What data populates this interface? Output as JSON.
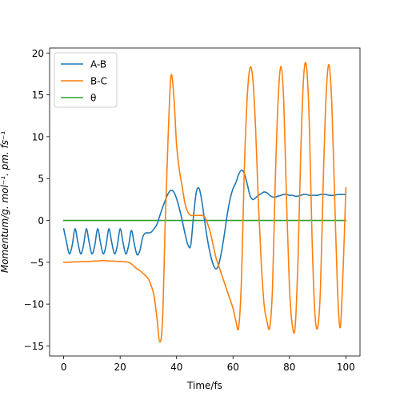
{
  "chart_data": {
    "type": "line",
    "title": "",
    "xlabel": "Time/fs",
    "ylabel": "Momentum/g. mol⁻¹. pm. fs⁻¹",
    "xlim": [
      -5,
      105
    ],
    "ylim": [
      -16.2,
      20.6
    ],
    "xticks": [
      0,
      20,
      40,
      60,
      80,
      100
    ],
    "yticks": [
      -15,
      -10,
      -5,
      0,
      5,
      10,
      15,
      20
    ],
    "grid": false,
    "legend_position": "top-left",
    "series": [
      {
        "name": "A-B",
        "color": "#1f77b4",
        "x": [
          0,
          1,
          2,
          3,
          4,
          5,
          6,
          7,
          8,
          9,
          10,
          11,
          12,
          13,
          14,
          15,
          16,
          17,
          18,
          19,
          20,
          21,
          22,
          23,
          24,
          25,
          26,
          27,
          28,
          29,
          30,
          31,
          32,
          33,
          34,
          35,
          36,
          37,
          38,
          39,
          40,
          41,
          42,
          43,
          44,
          45,
          46,
          47,
          48,
          49,
          50,
          51,
          52,
          53,
          54,
          55,
          56,
          57,
          58,
          59,
          60,
          61,
          62,
          63,
          64,
          65,
          66,
          67,
          68,
          69,
          70,
          71,
          72,
          73,
          74,
          75,
          76,
          77,
          78,
          79,
          80,
          81,
          82,
          83,
          84,
          85,
          86,
          87,
          88,
          89,
          90,
          91,
          92,
          93,
          94,
          95,
          96,
          97,
          98,
          99,
          100
        ],
        "y": [
          -1.0,
          -2.6,
          -4.0,
          -3.0,
          -1.0,
          -2.6,
          -4.0,
          -3.0,
          -1.0,
          -2.6,
          -4.0,
          -3.0,
          -1.0,
          -2.6,
          -4.0,
          -3.0,
          -1.0,
          -2.6,
          -4.0,
          -3.0,
          -1.0,
          -2.6,
          -4.0,
          -3.0,
          -1.2,
          -2.8,
          -4.1,
          -3.6,
          -2.0,
          -1.5,
          -1.5,
          -1.4,
          -1.0,
          -0.5,
          0.5,
          1.5,
          2.4,
          3.2,
          3.6,
          3.4,
          2.6,
          1.4,
          0.0,
          -1.6,
          -2.9,
          -3.0,
          0.5,
          3.4,
          3.8,
          2.2,
          -0.2,
          -2.4,
          -4.1,
          -5.3,
          -5.8,
          -5.2,
          -3.6,
          -1.5,
          0.8,
          2.6,
          3.8,
          4.5,
          5.5,
          6.0,
          5.6,
          4.4,
          3.0,
          2.5,
          2.7,
          3.0,
          3.2,
          3.4,
          3.3,
          3.0,
          2.8,
          2.8,
          2.9,
          3.0,
          3.1,
          3.1,
          3.0,
          3.0,
          2.9,
          2.9,
          3.0,
          3.1,
          3.1,
          3.0,
          3.0,
          3.0,
          3.0,
          3.1,
          3.1,
          3.1,
          3.0,
          3.0,
          3.0,
          3.1,
          3.1,
          3.1,
          3.1
        ]
      },
      {
        "name": "B-C",
        "color": "#ff7f0e",
        "x": [
          0,
          1,
          2,
          3,
          4,
          5,
          6,
          7,
          8,
          9,
          10,
          11,
          12,
          13,
          14,
          15,
          16,
          17,
          18,
          19,
          20,
          21,
          22,
          23,
          24,
          25,
          26,
          27,
          28,
          29,
          30,
          31,
          32,
          33,
          34,
          35,
          36,
          37,
          38,
          39,
          40,
          41,
          42,
          43,
          44,
          45,
          46,
          47,
          48,
          49,
          50,
          51,
          52,
          53,
          54,
          55,
          56,
          57,
          58,
          59,
          60,
          61,
          62,
          63,
          64,
          65,
          66,
          67,
          68,
          69,
          70,
          71,
          72,
          73,
          74,
          75,
          76,
          77,
          78,
          79,
          80,
          81,
          82,
          83,
          84,
          85,
          86,
          87,
          88,
          89,
          90,
          91,
          92,
          93,
          94,
          95,
          96,
          97,
          98,
          99,
          100
        ],
        "y": [
          -5.0,
          -5.0,
          -5.0,
          -4.97,
          -4.95,
          -4.95,
          -4.92,
          -4.9,
          -4.9,
          -4.9,
          -4.88,
          -4.85,
          -4.85,
          -4.82,
          -4.8,
          -4.82,
          -4.85,
          -4.85,
          -4.88,
          -4.9,
          -4.9,
          -4.92,
          -4.95,
          -5.0,
          -5.2,
          -5.5,
          -5.8,
          -6.0,
          -6.3,
          -6.6,
          -7.0,
          -7.8,
          -9.0,
          -11.5,
          -14.5,
          -12.0,
          0.0,
          10.0,
          17.2,
          15.0,
          9.0,
          6.0,
          4.0,
          2.0,
          1.0,
          0.6,
          0.6,
          0.6,
          0.6,
          0.6,
          0.4,
          -0.4,
          -1.5,
          -3.0,
          -4.5,
          -5.5,
          -6.5,
          -7.5,
          -8.5,
          -9.5,
          -10.5,
          -12.0,
          -12.8,
          -7.0,
          6.0,
          14.5,
          18.2,
          17.0,
          11.0,
          2.0,
          -5.0,
          -10.0,
          -12.0,
          -12.8,
          -8.0,
          5.0,
          14.5,
          18.4,
          14.0,
          2.0,
          -8.0,
          -12.5,
          -12.8,
          -5.0,
          8.0,
          17.0,
          18.5,
          12.0,
          -2.0,
          -11.0,
          -12.8,
          -8.0,
          5.0,
          15.0,
          18.6,
          14.0,
          3.0,
          -8.0,
          -12.8,
          -6.0,
          3.9
        ]
      },
      {
        "name": "θ",
        "color": "#2ca02c",
        "x": [
          0,
          100
        ],
        "y": [
          0.0,
          0.0
        ]
      }
    ]
  }
}
